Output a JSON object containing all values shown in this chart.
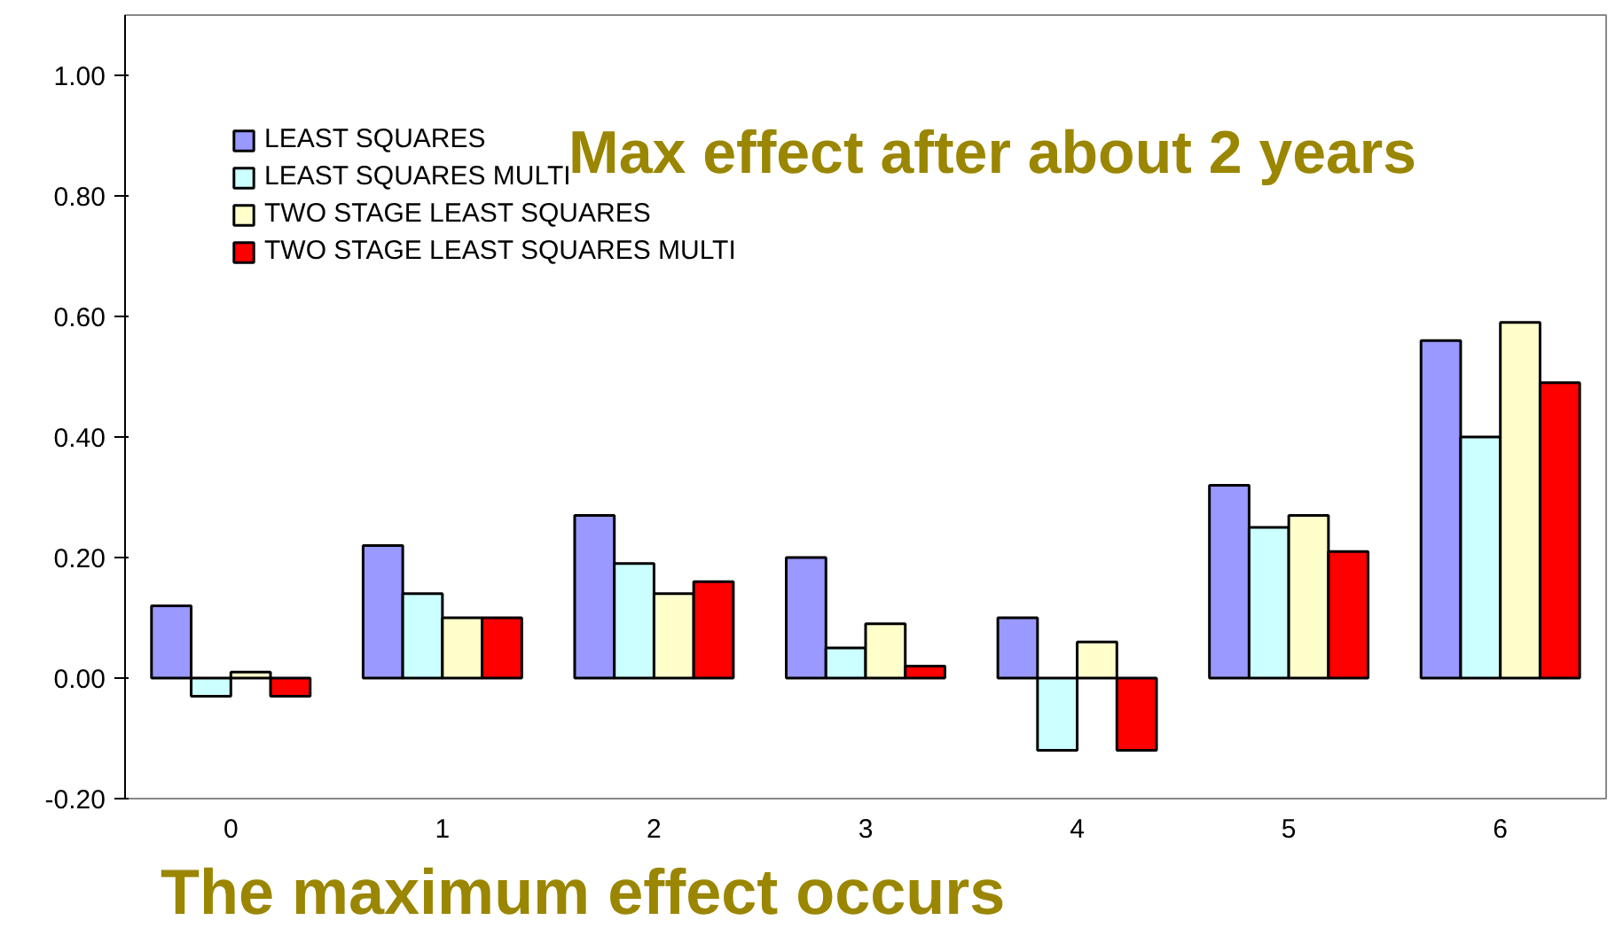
{
  "chart_data": {
    "type": "bar",
    "categories": [
      "0",
      "1",
      "2",
      "3",
      "4",
      "5",
      "6"
    ],
    "series": [
      {
        "name": "LEAST SQUARES",
        "color": "#9999ff",
        "values": [
          0.12,
          0.22,
          0.27,
          0.2,
          0.1,
          0.32,
          0.56
        ]
      },
      {
        "name": "LEAST SQUARES MULTI",
        "color": "#ccffff",
        "values": [
          -0.03,
          0.14,
          0.19,
          0.05,
          -0.12,
          0.25,
          0.4
        ]
      },
      {
        "name": "TWO STAGE LEAST SQUARES",
        "color": "#ffffcc",
        "values": [
          0.01,
          0.1,
          0.14,
          0.09,
          0.06,
          0.27,
          0.59
        ]
      },
      {
        "name": "TWO STAGE LEAST SQUARES MULTI",
        "color": "#ff0000",
        "values": [
          -0.03,
          0.1,
          0.16,
          0.02,
          -0.12,
          0.21,
          0.49
        ]
      }
    ],
    "ylim": [
      -0.2,
      1.1
    ],
    "yticks": [
      {
        "value": -0.2,
        "label": "-0.20"
      },
      {
        "value": 0,
        "label": "0.00"
      },
      {
        "value": 0.2,
        "label": "0.20"
      },
      {
        "value": 0.4,
        "label": "0.40"
      },
      {
        "value": 0.6,
        "label": "0.60"
      },
      {
        "value": 0.8,
        "label": "0.80"
      },
      {
        "value": 1.0,
        "label": "1.00"
      }
    ],
    "grid": false,
    "legend": "top left",
    "annotations": [
      "Max effect after about 2 years",
      "The maximum effect occurs"
    ]
  }
}
